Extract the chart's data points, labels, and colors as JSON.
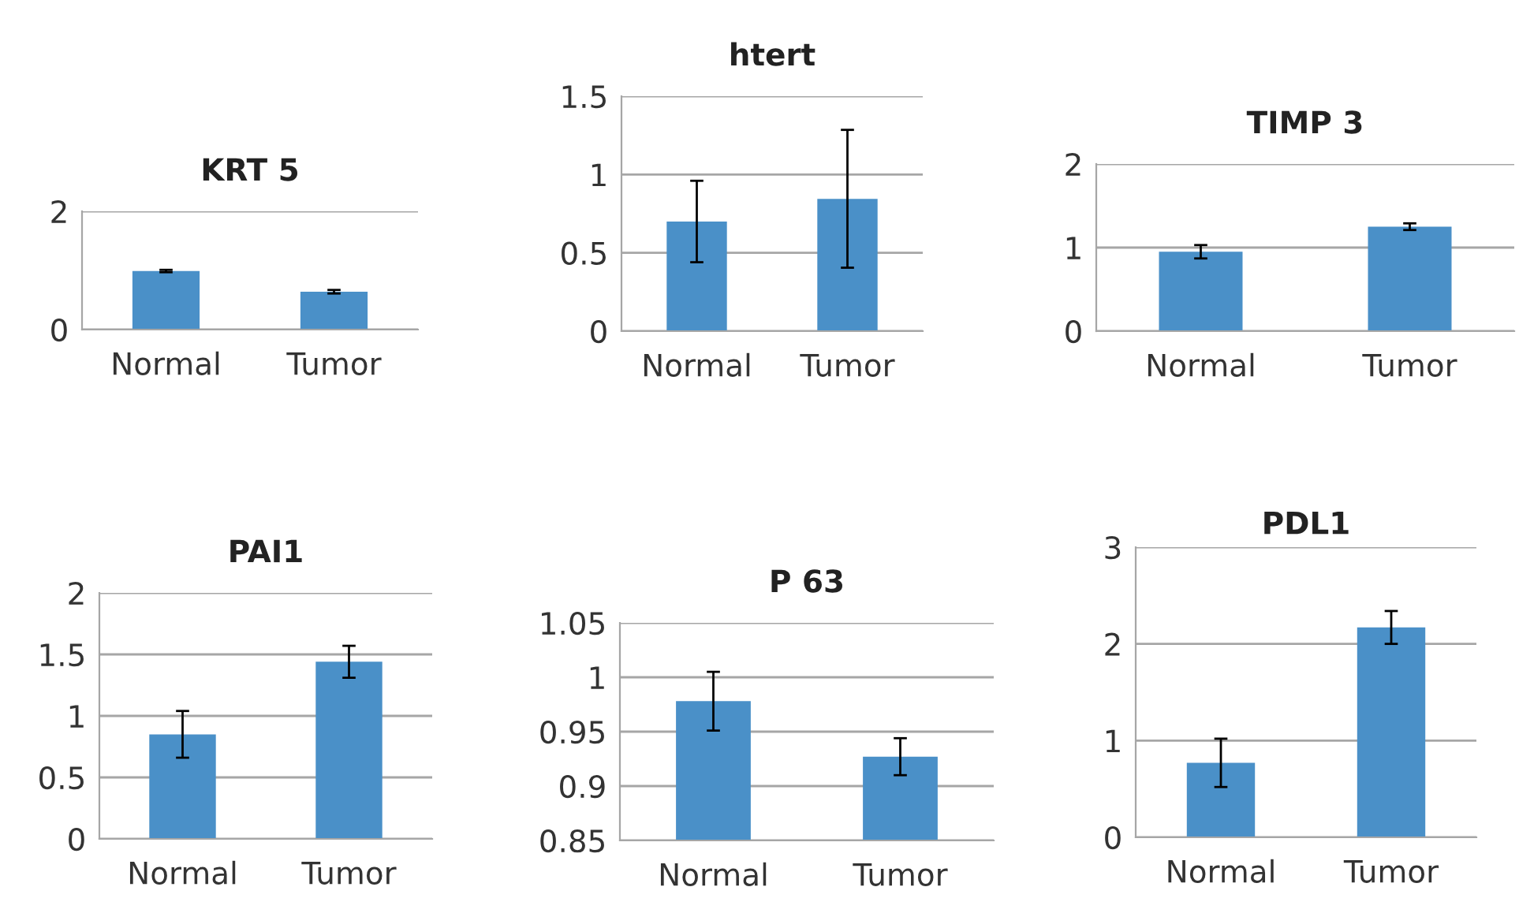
{
  "chart_data": [
    {
      "type": "bar",
      "title": "KRT 5",
      "categories": [
        "Normal",
        "Tumor"
      ],
      "values": [
        0.99,
        0.64
      ],
      "errors": [
        0.02,
        0.03
      ],
      "color": "#4a90c8",
      "ylim": [
        0,
        2
      ],
      "yticks": [
        0,
        2
      ],
      "grid": "y"
    },
    {
      "type": "bar",
      "title": "htert",
      "categories": [
        "Normal",
        "Tumor"
      ],
      "values": [
        0.7,
        0.845
      ],
      "errors": [
        0.26,
        0.44
      ],
      "color": "#4a90c8",
      "ylim": [
        0,
        1.5
      ],
      "yticks": [
        0,
        0.5,
        1,
        1.5
      ],
      "grid": "y"
    },
    {
      "type": "bar",
      "title": "TIMP 3",
      "categories": [
        "Normal",
        "Tumor"
      ],
      "values": [
        0.95,
        1.25
      ],
      "errors": [
        0.08,
        0.04
      ],
      "color": "#4a90c8",
      "ylim": [
        0,
        2
      ],
      "yticks": [
        0,
        1,
        2
      ],
      "grid": "y"
    },
    {
      "type": "bar",
      "title": "PAI1",
      "categories": [
        "Normal",
        "Tumor"
      ],
      "values": [
        0.85,
        1.44
      ],
      "errors": [
        0.19,
        0.13
      ],
      "color": "#4a90c8",
      "ylim": [
        0,
        2
      ],
      "yticks": [
        0,
        0.5,
        1,
        1.5,
        2
      ],
      "grid": "y"
    },
    {
      "type": "bar",
      "title": "P 63",
      "categories": [
        "Normal",
        "Tumor"
      ],
      "values": [
        0.978,
        0.927
      ],
      "errors": [
        0.027,
        0.017
      ],
      "color": "#4a90c8",
      "ylim": [
        0.85,
        1.05
      ],
      "yticks": [
        0.85,
        0.9,
        0.95,
        1,
        1.05
      ],
      "grid": "y"
    },
    {
      "type": "bar",
      "title": "PDL1",
      "categories": [
        "Normal",
        "Tumor"
      ],
      "values": [
        0.77,
        2.17
      ],
      "errors": [
        0.25,
        0.17
      ],
      "color": "#4a90c8",
      "ylim": [
        0,
        3
      ],
      "yticks": [
        0,
        1,
        2,
        3
      ],
      "grid": "y"
    }
  ]
}
